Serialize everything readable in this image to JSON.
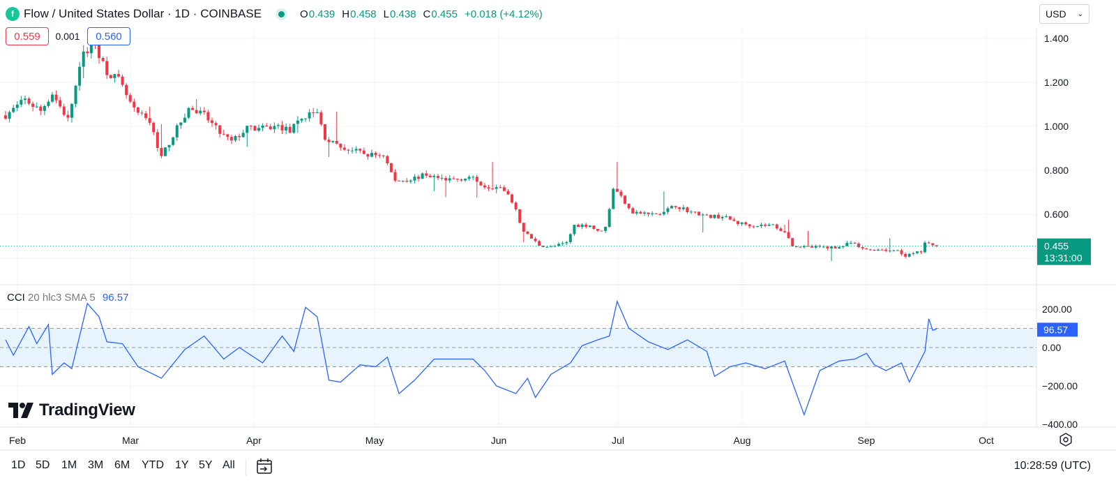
{
  "header": {
    "title": "Flow / United States Dollar · 1D · COINBASE",
    "ohlc": [
      {
        "k": "O",
        "v": "0.439"
      },
      {
        "k": "H",
        "v": "0.458"
      },
      {
        "k": "L",
        "v": "0.438"
      },
      {
        "k": "C",
        "v": "0.455"
      }
    ],
    "change": "+0.018 (+4.12%)",
    "currency": "USD"
  },
  "pills": {
    "bid": "0.559",
    "spread": "0.001",
    "ask": "0.560"
  },
  "price_axis": {
    "ticks": [
      "1.400",
      "1.200",
      "1.000",
      "0.800",
      "0.600"
    ],
    "last_price": "0.455",
    "countdown": "13:31:00"
  },
  "cci": {
    "label": "CCI",
    "params": "20 hlc3 SMA 5",
    "value": "96.57",
    "ticks": [
      "200.00",
      "0.00",
      "−200.00",
      "−400.00"
    ]
  },
  "time_axis": {
    "labels": [
      "Feb",
      "Mar",
      "Apr",
      "May",
      "Jun",
      "Jul",
      "Aug",
      "Sep",
      "Oct"
    ]
  },
  "branding": "TradingView",
  "timeframes": [
    "1D",
    "5D",
    "1M",
    "3M",
    "6M",
    "YTD",
    "1Y",
    "5Y",
    "All"
  ],
  "clock": "10:28:59 (UTC)",
  "colors": {
    "up": "#089981",
    "down": "#f23645",
    "cci_line": "#2962ff",
    "band": "#e3f2fd"
  },
  "chart_data": [
    {
      "type": "candlestick",
      "title": "Flow / United States Dollar · 1D · COINBASE",
      "x_range": [
        "Feb",
        "Sep"
      ],
      "ylim": [
        0.33,
        1.46
      ],
      "grid": true,
      "anchors": [
        {
          "x": 0,
          "y": 1.05
        },
        {
          "x": 5,
          "y": 1.12
        },
        {
          "x": 9,
          "y": 1.07
        },
        {
          "x": 12,
          "y": 1.15
        },
        {
          "x": 16,
          "y": 1.03
        },
        {
          "x": 20,
          "y": 1.33
        },
        {
          "x": 23,
          "y": 1.37
        },
        {
          "x": 26,
          "y": 1.25
        },
        {
          "x": 29,
          "y": 1.21
        },
        {
          "x": 33,
          "y": 1.07
        },
        {
          "x": 37,
          "y": 1.02
        },
        {
          "x": 40,
          "y": 0.86
        },
        {
          "x": 43,
          "y": 0.96
        },
        {
          "x": 47,
          "y": 1.08
        },
        {
          "x": 51,
          "y": 1.05
        },
        {
          "x": 55,
          "y": 0.97
        },
        {
          "x": 58,
          "y": 0.93
        },
        {
          "x": 62,
          "y": 0.99
        },
        {
          "x": 66,
          "y": 0.99
        },
        {
          "x": 70,
          "y": 1.0
        },
        {
          "x": 73,
          "y": 0.98
        },
        {
          "x": 77,
          "y": 1.05
        },
        {
          "x": 80,
          "y": 1.06
        },
        {
          "x": 82,
          "y": 0.95
        },
        {
          "x": 85,
          "y": 0.91
        },
        {
          "x": 89,
          "y": 0.89
        },
        {
          "x": 93,
          "y": 0.87
        },
        {
          "x": 97,
          "y": 0.87
        },
        {
          "x": 100,
          "y": 0.75
        },
        {
          "x": 104,
          "y": 0.76
        },
        {
          "x": 108,
          "y": 0.78
        },
        {
          "x": 112,
          "y": 0.76
        },
        {
          "x": 116,
          "y": 0.76
        },
        {
          "x": 119,
          "y": 0.77
        },
        {
          "x": 123,
          "y": 0.73
        },
        {
          "x": 127,
          "y": 0.72
        },
        {
          "x": 130,
          "y": 0.66
        },
        {
          "x": 133,
          "y": 0.52
        },
        {
          "x": 137,
          "y": 0.46
        },
        {
          "x": 140,
          "y": 0.45
        },
        {
          "x": 144,
          "y": 0.47
        },
        {
          "x": 146,
          "y": 0.55
        },
        {
          "x": 150,
          "y": 0.55
        },
        {
          "x": 152,
          "y": 0.52
        },
        {
          "x": 154,
          "y": 0.54
        },
        {
          "x": 156,
          "y": 0.72
        },
        {
          "x": 158,
          "y": 0.68
        },
        {
          "x": 161,
          "y": 0.61
        },
        {
          "x": 165,
          "y": 0.6
        },
        {
          "x": 168,
          "y": 0.6
        },
        {
          "x": 172,
          "y": 0.64
        },
        {
          "x": 176,
          "y": 0.61
        },
        {
          "x": 180,
          "y": 0.59
        },
        {
          "x": 184,
          "y": 0.59
        },
        {
          "x": 188,
          "y": 0.56
        },
        {
          "x": 192,
          "y": 0.55
        },
        {
          "x": 197,
          "y": 0.55
        },
        {
          "x": 200,
          "y": 0.52
        },
        {
          "x": 202,
          "y": 0.46
        },
        {
          "x": 205,
          "y": 0.45
        },
        {
          "x": 210,
          "y": 0.45
        },
        {
          "x": 214,
          "y": 0.45
        },
        {
          "x": 217,
          "y": 0.47
        },
        {
          "x": 220,
          "y": 0.44
        },
        {
          "x": 225,
          "y": 0.44
        },
        {
          "x": 229,
          "y": 0.43
        },
        {
          "x": 231,
          "y": 0.41
        },
        {
          "x": 235,
          "y": 0.43
        },
        {
          "x": 236,
          "y": 0.47
        },
        {
          "x": 238,
          "y": 0.455
        }
      ]
    },
    {
      "type": "line",
      "title": "CCI 20 hlc3 SMA 5",
      "ylim": [
        -400,
        250
      ],
      "bands": [
        -100,
        0,
        100
      ],
      "series": [
        {
          "name": "CCI",
          "points": [
            {
              "x": 0,
              "y": 40
            },
            {
              "x": 2,
              "y": -40
            },
            {
              "x": 6,
              "y": 110
            },
            {
              "x": 8,
              "y": 20
            },
            {
              "x": 11,
              "y": 120
            },
            {
              "x": 12,
              "y": -140
            },
            {
              "x": 15,
              "y": -80
            },
            {
              "x": 17,
              "y": -110
            },
            {
              "x": 21,
              "y": 230
            },
            {
              "x": 24,
              "y": 160
            },
            {
              "x": 26,
              "y": 30
            },
            {
              "x": 30,
              "y": 20
            },
            {
              "x": 34,
              "y": -100
            },
            {
              "x": 40,
              "y": -160
            },
            {
              "x": 46,
              "y": -10
            },
            {
              "x": 51,
              "y": 60
            },
            {
              "x": 56,
              "y": -60
            },
            {
              "x": 60,
              "y": 0
            },
            {
              "x": 66,
              "y": -80
            },
            {
              "x": 71,
              "y": 60
            },
            {
              "x": 74,
              "y": -20
            },
            {
              "x": 77,
              "y": 210
            },
            {
              "x": 80,
              "y": 160
            },
            {
              "x": 83,
              "y": -170
            },
            {
              "x": 86,
              "y": -180
            },
            {
              "x": 91,
              "y": -90
            },
            {
              "x": 95,
              "y": -100
            },
            {
              "x": 98,
              "y": -50
            },
            {
              "x": 101,
              "y": -240
            },
            {
              "x": 105,
              "y": -170
            },
            {
              "x": 110,
              "y": -60
            },
            {
              "x": 114,
              "y": -60
            },
            {
              "x": 117,
              "y": -60
            },
            {
              "x": 120,
              "y": -60
            },
            {
              "x": 123,
              "y": -120
            },
            {
              "x": 126,
              "y": -200
            },
            {
              "x": 131,
              "y": -240
            },
            {
              "x": 134,
              "y": -160
            },
            {
              "x": 136,
              "y": -260
            },
            {
              "x": 140,
              "y": -140
            },
            {
              "x": 145,
              "y": -80
            },
            {
              "x": 148,
              "y": 10
            },
            {
              "x": 152,
              "y": 40
            },
            {
              "x": 155,
              "y": 60
            },
            {
              "x": 157,
              "y": 240
            },
            {
              "x": 160,
              "y": 100
            },
            {
              "x": 165,
              "y": 30
            },
            {
              "x": 170,
              "y": -10
            },
            {
              "x": 175,
              "y": 40
            },
            {
              "x": 180,
              "y": -20
            },
            {
              "x": 182,
              "y": -150
            },
            {
              "x": 186,
              "y": -100
            },
            {
              "x": 190,
              "y": -80
            },
            {
              "x": 195,
              "y": -110
            },
            {
              "x": 200,
              "y": -70
            },
            {
              "x": 203,
              "y": -240
            },
            {
              "x": 205,
              "y": -350
            },
            {
              "x": 209,
              "y": -120
            },
            {
              "x": 214,
              "y": -70
            },
            {
              "x": 218,
              "y": -60
            },
            {
              "x": 221,
              "y": -30
            },
            {
              "x": 223,
              "y": -90
            },
            {
              "x": 226,
              "y": -120
            },
            {
              "x": 230,
              "y": -80
            },
            {
              "x": 232,
              "y": -180
            },
            {
              "x": 236,
              "y": -20
            },
            {
              "x": 237,
              "y": 150
            },
            {
              "x": 238,
              "y": 90
            },
            {
              "x": 239,
              "y": 96.57
            }
          ]
        }
      ]
    }
  ]
}
